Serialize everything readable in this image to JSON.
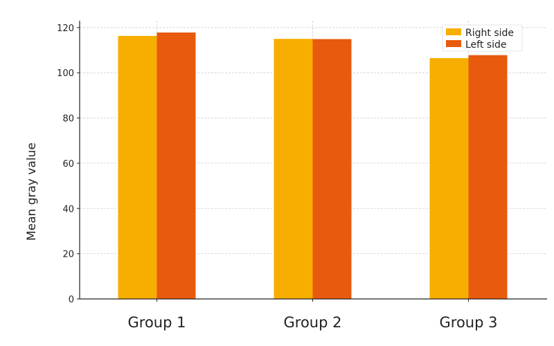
{
  "chart_data": {
    "type": "bar",
    "title": "",
    "xlabel": "",
    "ylabel": "Mean gray value",
    "categories": [
      "Group 1",
      "Group 2",
      "Group 3"
    ],
    "series": [
      {
        "name": "Right side",
        "values": [
          116.3,
          115.0,
          106.5
        ],
        "color": "#F8AE00"
      },
      {
        "name": "Left side",
        "values": [
          117.8,
          114.9,
          107.8
        ],
        "color": "#E85A0E"
      }
    ],
    "ylim": [
      0,
      123
    ],
    "yticks": [
      "0",
      "20",
      "40",
      "60",
      "80",
      "100",
      "120"
    ],
    "grid": true,
    "legend_position": "top-right"
  }
}
